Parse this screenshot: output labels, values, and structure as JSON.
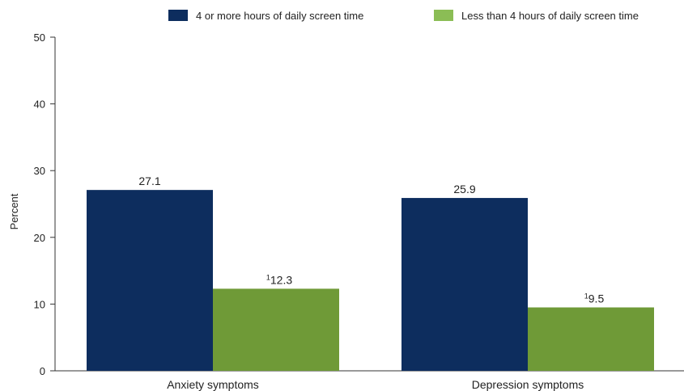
{
  "chart_data": {
    "type": "bar",
    "categories": [
      "Anxiety symptoms",
      "Depression symptoms"
    ],
    "series": [
      {
        "name": "4 or more hours of daily screen time",
        "color": "#0d2d5e",
        "values": [
          27.1,
          25.9
        ],
        "labels": [
          "27.1",
          "25.9"
        ],
        "footnote_marks": [
          "",
          ""
        ]
      },
      {
        "name": "Less than 4 hours of daily screen time",
        "color": "#6f9a37",
        "legend_color": "#8bbd55",
        "values": [
          12.3,
          9.5
        ],
        "labels": [
          "12.3",
          "9.5"
        ],
        "footnote_marks": [
          "1",
          "1"
        ]
      }
    ],
    "title": "",
    "xlabel": "",
    "ylabel": "Percent",
    "ylim": [
      0,
      50
    ],
    "yticks": [
      0,
      10,
      20,
      30,
      40,
      50
    ],
    "legend_position": "top-right",
    "grid": false
  }
}
